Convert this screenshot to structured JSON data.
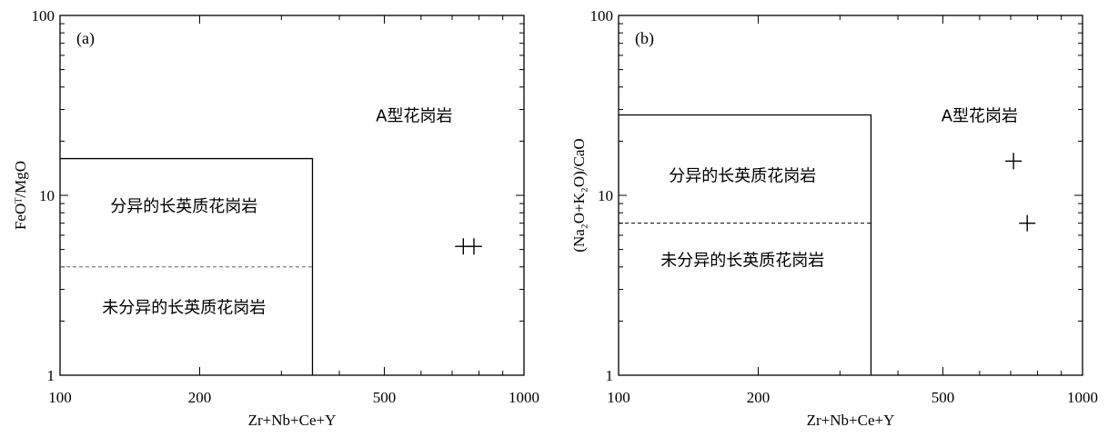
{
  "chart_data": [
    {
      "type": "scatter",
      "panel_label": "(a)",
      "xlabel": "Zr+Nb+Ce+Y",
      "ylabel": "FeOᵀ/MgO",
      "xscale": "log",
      "yscale": "log",
      "xlim": [
        100,
        1000
      ],
      "ylim": [
        1,
        100
      ],
      "xticks": [
        "100",
        "200",
        "500",
        "1000"
      ],
      "yticks": [
        "1",
        "10",
        "100"
      ],
      "regions": [
        {
          "label": "A型花岗岩",
          "x": 580,
          "y": 28
        },
        {
          "label": "分异的长英质花岗岩",
          "x": 185,
          "y": 8.8
        },
        {
          "label": "未分异的长英质花岗岩",
          "x": 185,
          "y": 2.4
        }
      ],
      "field_box": {
        "x": [
          100,
          350
        ],
        "y": [
          1,
          16
        ]
      },
      "divider_y": 4,
      "points": [
        {
          "x": 740,
          "y": 5.2
        },
        {
          "x": 780,
          "y": 5.2
        }
      ]
    },
    {
      "type": "scatter",
      "panel_label": "(b)",
      "xlabel": "Zr+Nb+Ce+Y",
      "ylabel": "(Na₂O+K₂O)/CaO",
      "xscale": "log",
      "yscale": "log",
      "xlim": [
        100,
        1000
      ],
      "ylim": [
        1,
        100
      ],
      "xticks": [
        "100",
        "200",
        "500",
        "1000"
      ],
      "yticks": [
        "1",
        "10",
        "100"
      ],
      "regions": [
        {
          "label": "A型花岗岩",
          "x": 600,
          "y": 28
        },
        {
          "label": "分异的长英质花岗岩",
          "x": 185,
          "y": 13
        },
        {
          "label": "未分异的长英质花岗岩",
          "x": 185,
          "y": 4.4
        }
      ],
      "field_box": {
        "x": [
          100,
          350
        ],
        "y": [
          1,
          28
        ]
      },
      "divider_y": 7,
      "points": [
        {
          "x": 710,
          "y": 15.5
        },
        {
          "x": 760,
          "y": 7
        }
      ]
    }
  ]
}
